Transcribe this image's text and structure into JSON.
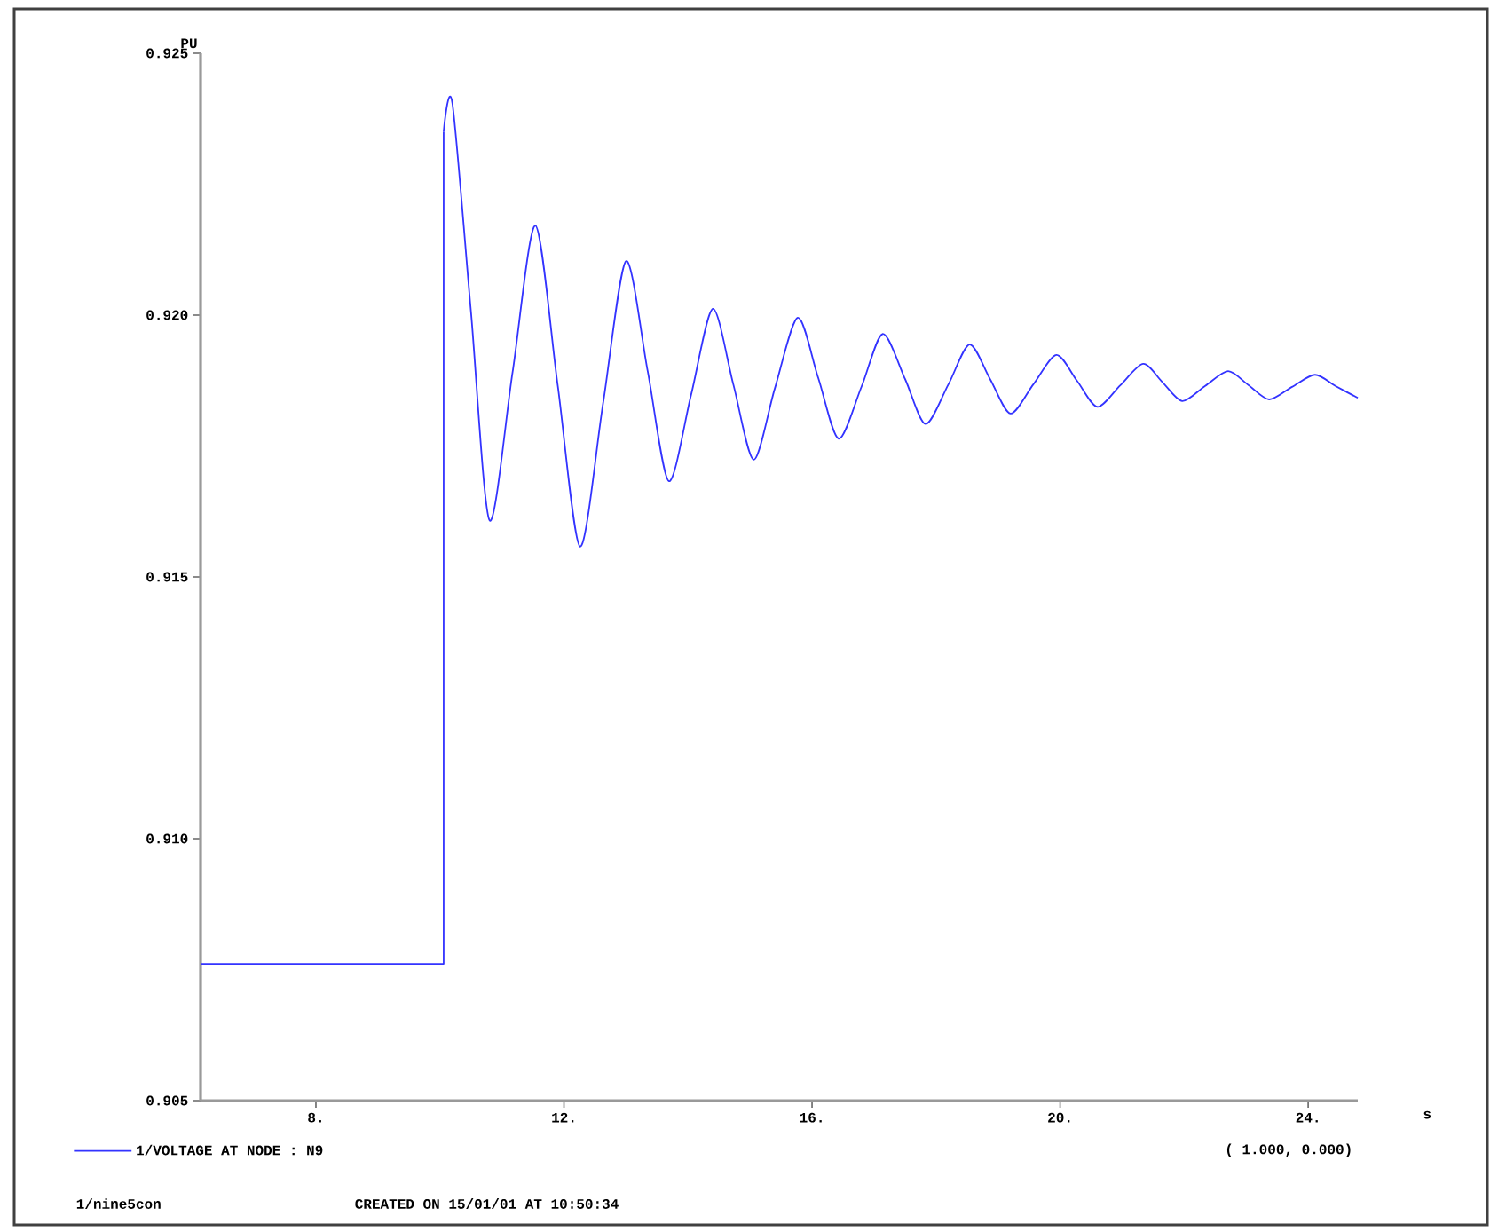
{
  "chart_data": {
    "type": "line",
    "xlabel": "s",
    "ylabel": "PU",
    "xlim": [
      6.14,
      24.8
    ],
    "ylim": [
      0.905,
      0.925
    ],
    "xticks": [
      {
        "value": 8,
        "label": "8."
      },
      {
        "value": 12,
        "label": "12."
      },
      {
        "value": 16,
        "label": "16."
      },
      {
        "value": 20,
        "label": "20."
      },
      {
        "value": 24,
        "label": "24."
      }
    ],
    "yticks": [
      0.905,
      {
        "value": 0.91,
        "label": "0.910"
      },
      0.915,
      {
        "value": 0.92,
        "label": "0.920"
      },
      0.925
    ],
    "legend": "bottom",
    "grid": false,
    "marker": "none",
    "line_style": "solid",
    "annotations": [
      "( 1.000, 0.000)",
      "1/nine5con",
      "CREATED ON 15/01/01 AT 10:50:34"
    ],
    "series": [
      {
        "name": "1/VOLTAGE AT NODE : N9",
        "color": "#3333ff",
        "x": [
          6.14,
          10.06,
          10.06,
          10.2,
          10.5,
          10.8,
          11.17,
          11.54,
          11.9,
          12.26,
          12.63,
          13.0,
          13.35,
          13.69,
          14.05,
          14.4,
          14.73,
          15.06,
          15.4,
          15.77,
          16.1,
          16.43,
          16.8,
          17.14,
          17.5,
          17.83,
          18.2,
          18.54,
          18.87,
          19.2,
          19.57,
          19.94,
          20.27,
          20.6,
          20.97,
          21.34,
          21.65,
          21.97,
          22.34,
          22.71,
          23.04,
          23.37,
          23.74,
          24.11,
          24.45,
          24.8
        ],
        "values": [
          0.90761,
          0.90761,
          0.9235,
          0.92405,
          0.92007,
          0.91608,
          0.9189,
          0.92171,
          0.91865,
          0.91558,
          0.91831,
          0.92103,
          0.91893,
          0.91683,
          0.91848,
          0.92012,
          0.91868,
          0.91724,
          0.9186,
          0.91995,
          0.9188,
          0.91764,
          0.91864,
          0.91964,
          0.91878,
          0.91792,
          0.91868,
          0.91944,
          0.91878,
          0.91812,
          0.91868,
          0.91924,
          0.91875,
          0.91825,
          0.91866,
          0.91907,
          0.91872,
          0.91836,
          0.91865,
          0.91893,
          0.91866,
          0.91839,
          0.91863,
          0.91886,
          0.91864,
          0.91842
        ]
      }
    ]
  }
}
